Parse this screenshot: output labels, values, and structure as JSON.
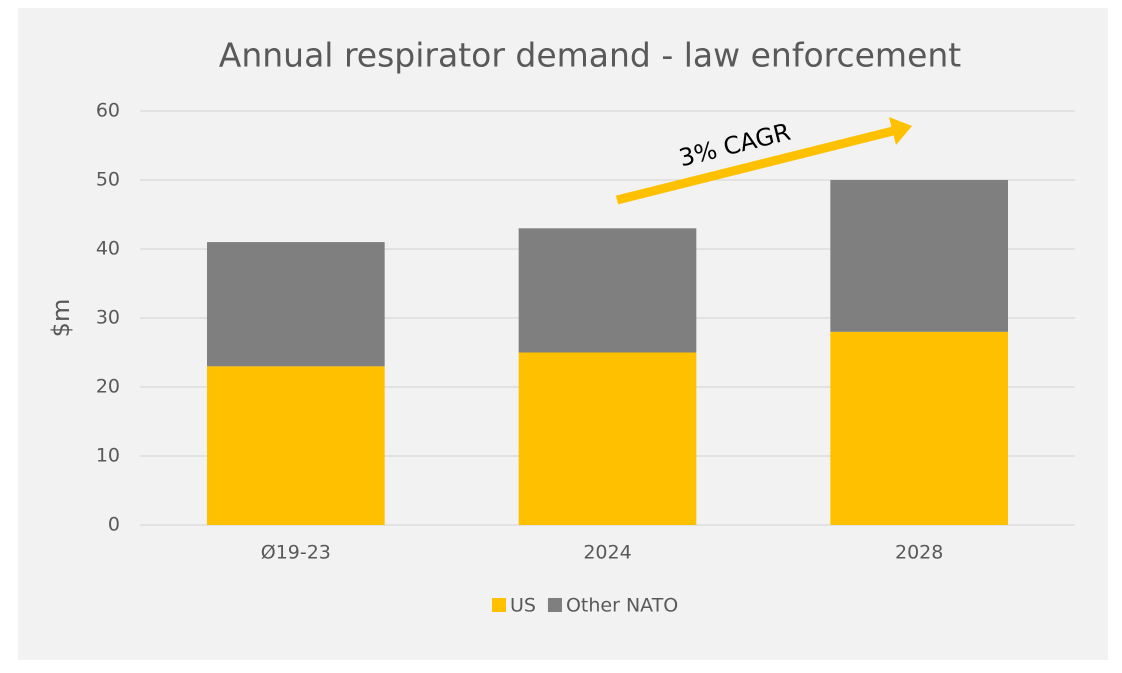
{
  "chart_data": {
    "type": "bar",
    "stacked": true,
    "title": "Annual respirator demand - law enforcement",
    "y_label": "$m",
    "annotation": "3% CAGR",
    "categories": [
      "Ø19-23",
      "2024",
      "2028"
    ],
    "series": [
      {
        "name": "US",
        "color": "#ffc000",
        "values": [
          23,
          25,
          28
        ]
      },
      {
        "name": "Other NATO",
        "color": "#7f7f7f",
        "values": [
          18,
          18,
          22
        ]
      }
    ],
    "ylim": [
      0,
      60
    ],
    "yticks": [
      0,
      10,
      20,
      30,
      40,
      50,
      60
    ],
    "grid": true,
    "legend": "bottom"
  }
}
